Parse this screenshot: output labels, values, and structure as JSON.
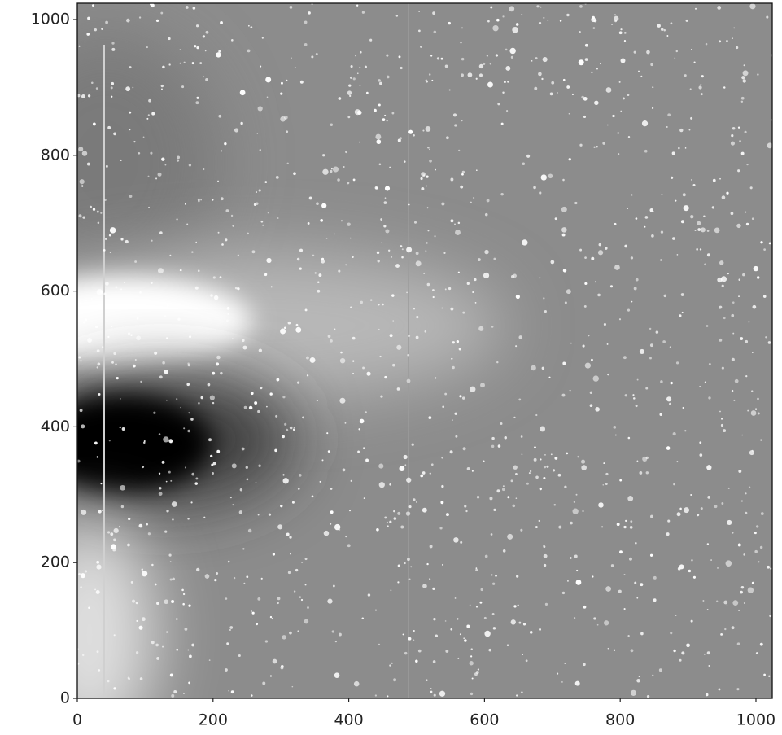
{
  "chart_data": {
    "type": "image",
    "xlim": [
      0,
      1024
    ],
    "ylim": [
      0,
      1024
    ],
    "xticks": [
      0,
      200,
      400,
      600,
      800,
      1000
    ],
    "yticks": [
      0,
      200,
      400,
      600,
      800,
      1000
    ]
  }
}
